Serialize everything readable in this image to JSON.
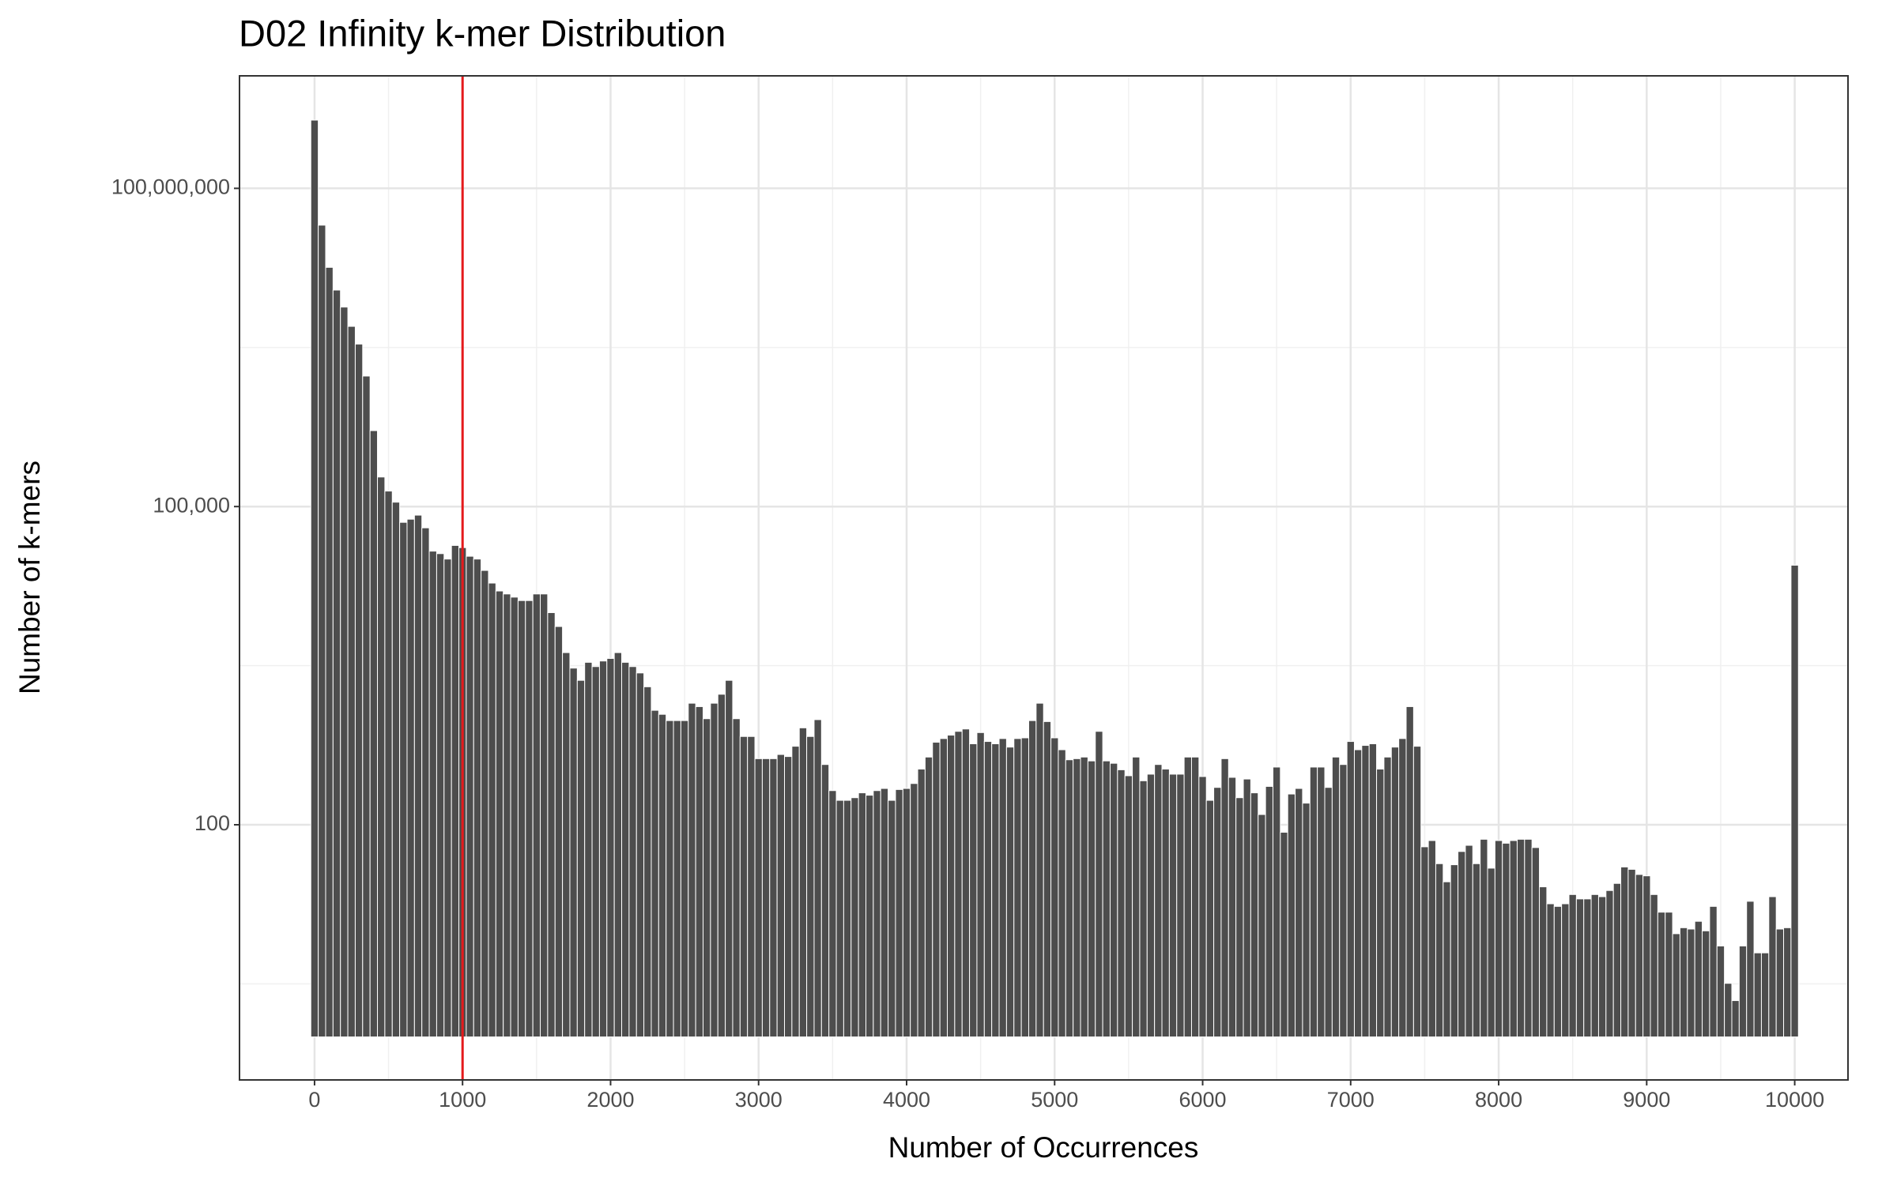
{
  "chart_data": {
    "type": "histogram",
    "title": "D02 Infinity k-mer Distribution",
    "x_label": "Number of Occurrences",
    "y_label": "Number of k-mers",
    "bins": [
      -25,
      25,
      75,
      125,
      175,
      225,
      275,
      325,
      375,
      425,
      475,
      525,
      575,
      625,
      675,
      725,
      775,
      825,
      875,
      925,
      975,
      1025,
      1075,
      1125,
      1175,
      1225,
      1275,
      1325,
      1375,
      1425,
      1475,
      1525,
      1575,
      1625,
      1675,
      1725,
      1775,
      1825,
      1875,
      1925,
      1975,
      2025,
      2075,
      2125,
      2175,
      2225,
      2275,
      2325,
      2375,
      2425,
      2475,
      2525,
      2575,
      2625,
      2675,
      2725,
      2775,
      2825,
      2875,
      2925,
      2975,
      3025,
      3075,
      3125,
      3175,
      3225,
      3275,
      3325,
      3375,
      3425,
      3475,
      3525,
      3575,
      3625,
      3675,
      3725,
      3775,
      3825,
      3875,
      3925,
      3975,
      4025,
      4075,
      4125,
      4175,
      4225,
      4275,
      4325,
      4375,
      4425,
      4475,
      4525,
      4575,
      4625,
      4675,
      4725,
      4775,
      4825,
      4875,
      4925,
      4975,
      5025,
      5075,
      5125,
      5175,
      5225,
      5275,
      5325,
      5375,
      5425,
      5475,
      5525,
      5575,
      5625,
      5675,
      5725,
      5775,
      5825,
      5875,
      5925,
      5975,
      6025,
      6075,
      6125,
      6175,
      6225,
      6275,
      6325,
      6375,
      6425,
      6475,
      6525,
      6575,
      6625,
      6675,
      6725,
      6775,
      6825,
      6875,
      6925,
      6975,
      7025,
      7075,
      7125,
      7175,
      7225,
      7275,
      7325,
      7375,
      7425,
      7475,
      7525,
      7575,
      7625,
      7675,
      7725,
      7775,
      7825,
      7875,
      7925,
      7975,
      8025,
      8075,
      8125,
      8175,
      8225,
      8275,
      8325,
      8375,
      8425,
      8475,
      8525,
      8575,
      8625,
      8675,
      8725,
      8775,
      8825,
      8875,
      8925,
      8975,
      9025,
      9075,
      9125,
      9175,
      9225,
      9275,
      9325,
      9375,
      9425,
      9475,
      9525,
      9575,
      9625,
      9675,
      9725,
      9775,
      9825,
      9875,
      9925,
      9975,
      10025
    ],
    "values": [
      440000000,
      45000000,
      18000000,
      11000000,
      7600000,
      5000000,
      3400000,
      1700000,
      520000,
      190000,
      140000,
      110000,
      71000,
      76000,
      83000,
      63000,
      38000,
      36000,
      32000,
      43000,
      41000,
      34000,
      32000,
      25000,
      19000,
      16000,
      15000,
      14000,
      13000,
      13000,
      15000,
      15000,
      10000,
      7400,
      4200,
      3000,
      2300,
      3400,
      3100,
      3500,
      3700,
      4200,
      3400,
      3100,
      2700,
      2000,
      1200,
      1100,
      960,
      960,
      960,
      1400,
      1300,
      1000,
      1400,
      1700,
      2300,
      1000,
      680,
      680,
      420,
      420,
      420,
      460,
      440,
      550,
      820,
      680,
      980,
      370,
      210,
      170,
      170,
      180,
      200,
      190,
      210,
      220,
      170,
      215,
      220,
      245,
      335,
      435,
      600,
      650,
      700,
      760,
      800,
      580,
      740,
      610,
      580,
      650,
      540,
      650,
      660,
      960,
      1400,
      940,
      660,
      510,
      410,
      420,
      435,
      400,
      760,
      400,
      380,
      330,
      290,
      435,
      260,
      300,
      370,
      335,
      300,
      300,
      435,
      435,
      285,
      170,
      225,
      420,
      280,
      180,
      270,
      200,
      125,
      230,
      350,
      85,
      195,
      220,
      160,
      350,
      350,
      225,
      435,
      370,
      610,
      510,
      560,
      580,
      335,
      435,
      540,
      650,
      1300,
      550,
      62,
      71,
      43,
      29,
      42,
      56,
      64,
      43,
      73,
      39,
      71,
      67,
      71,
      73,
      73,
      61,
      26,
      18,
      17,
      18,
      22,
      20,
      20,
      22,
      21,
      24,
      28,
      40,
      38,
      34,
      33,
      22,
      15,
      15,
      9.4,
      10.7,
      10.4,
      12.3,
      10,
      17,
      7.2,
      3.2,
      2.2,
      7.2,
      19,
      6.2,
      6.2,
      21,
      10.4,
      10.7,
      28000
    ],
    "color": "#4d4d4d",
    "xlim": [
      -507,
      10360
    ],
    "xticks": [
      0,
      1000,
      2000,
      3000,
      4000,
      5000,
      6000,
      7000,
      8000,
      9000,
      10000
    ],
    "x_minor_grid": [
      500,
      1500,
      2500,
      3500,
      4500,
      5500,
      6500,
      7500,
      8500,
      9500
    ],
    "ylim": [
      0.393,
      1150000000
    ],
    "y_log": true,
    "yticks": [
      100,
      {
        "value": 100000,
        "label": "100,000"
      },
      {
        "value": 100000000,
        "label": "100,000,000"
      }
    ],
    "y_minor_grid": [
      3.162,
      3162,
      3162278
    ],
    "grid": true,
    "vline": 1000,
    "vline_color": "#e41a1c"
  }
}
